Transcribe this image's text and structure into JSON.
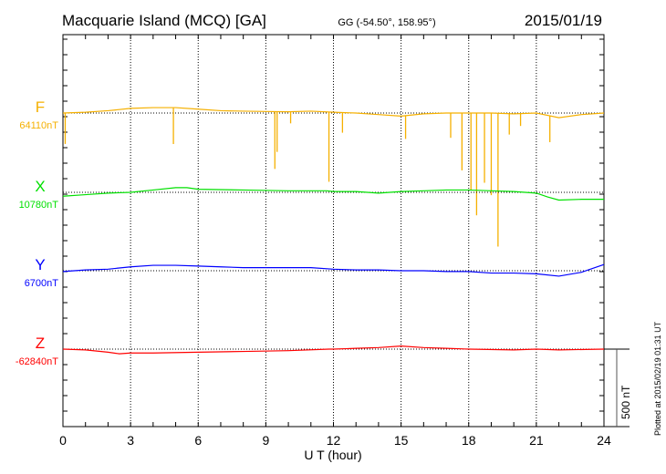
{
  "header": {
    "station": "Macquarie Island (MCQ)  [GA]",
    "coords": "GG (-54.50°, 158.95°)",
    "date": "2015/01/19"
  },
  "footer": {
    "plotted": "Plotted at 2015/02/19 01:31  UT",
    "scale_label": "500 nT"
  },
  "chart_data": {
    "type": "line",
    "xlabel": "U T (hour)",
    "xlim": [
      0,
      24
    ],
    "xticks": [
      "0",
      "3",
      "6",
      "9",
      "12",
      "15",
      "18",
      "21",
      "24"
    ],
    "units_per_minor_ytick_nT": 100,
    "series": [
      {
        "name": "F",
        "baseline": "64110nT",
        "color": "#f5b000",
        "points": [
          [
            0,
            0
          ],
          [
            1,
            5
          ],
          [
            2,
            15
          ],
          [
            3,
            30
          ],
          [
            4,
            35
          ],
          [
            5,
            35
          ],
          [
            6,
            25
          ],
          [
            7,
            15
          ],
          [
            8,
            12
          ],
          [
            9,
            10
          ],
          [
            10,
            8
          ],
          [
            11,
            12
          ],
          [
            12,
            5
          ],
          [
            13,
            0
          ],
          [
            14,
            -10
          ],
          [
            15,
            -20
          ],
          [
            16,
            -5
          ],
          [
            17,
            0
          ],
          [
            18,
            0
          ],
          [
            19,
            0
          ],
          [
            20,
            -5
          ],
          [
            21,
            0
          ],
          [
            22,
            -30
          ],
          [
            23,
            -10
          ],
          [
            24,
            0
          ]
        ],
        "spikes": [
          [
            0.1,
            -200
          ],
          [
            4.9,
            -235
          ],
          [
            9.4,
            -370
          ],
          [
            9.5,
            -260
          ],
          [
            10.1,
            -75
          ],
          [
            11.8,
            -450
          ],
          [
            12.4,
            -130
          ],
          [
            15.2,
            -150
          ],
          [
            17.2,
            -160
          ],
          [
            17.7,
            -370
          ],
          [
            18.1,
            -500
          ],
          [
            18.35,
            -660
          ],
          [
            18.7,
            -450
          ],
          [
            19.0,
            -530
          ],
          [
            19.3,
            -860
          ],
          [
            19.8,
            -135
          ],
          [
            20.3,
            -80
          ],
          [
            21.6,
            -170
          ]
        ]
      },
      {
        "name": "X",
        "baseline": "10780nT",
        "color": "#00e000",
        "points": [
          [
            0,
            -25
          ],
          [
            1,
            -15
          ],
          [
            2,
            -5
          ],
          [
            3,
            0
          ],
          [
            4,
            15
          ],
          [
            5,
            30
          ],
          [
            5.5,
            30
          ],
          [
            6,
            20
          ],
          [
            8,
            15
          ],
          [
            10,
            10
          ],
          [
            11.7,
            10
          ],
          [
            12,
            5
          ],
          [
            13,
            5
          ],
          [
            14,
            -5
          ],
          [
            15,
            5
          ],
          [
            16,
            10
          ],
          [
            17,
            15
          ],
          [
            18,
            15
          ],
          [
            19,
            10
          ],
          [
            20,
            5
          ],
          [
            21,
            -5
          ],
          [
            21.5,
            -30
          ],
          [
            22,
            -50
          ],
          [
            23,
            -45
          ],
          [
            24,
            -45
          ]
        ]
      },
      {
        "name": "Y",
        "baseline": "6700nT",
        "color": "#0000ff",
        "points": [
          [
            0,
            -5
          ],
          [
            1,
            5
          ],
          [
            2,
            10
          ],
          [
            3,
            25
          ],
          [
            4,
            35
          ],
          [
            5,
            35
          ],
          [
            6,
            30
          ],
          [
            7,
            25
          ],
          [
            8,
            20
          ],
          [
            9,
            20
          ],
          [
            10,
            20
          ],
          [
            11,
            20
          ],
          [
            12,
            10
          ],
          [
            13,
            5
          ],
          [
            14,
            5
          ],
          [
            15,
            0
          ],
          [
            16,
            0
          ],
          [
            17,
            -5
          ],
          [
            18,
            -5
          ],
          [
            19,
            -15
          ],
          [
            20,
            -15
          ],
          [
            21,
            -20
          ],
          [
            22,
            -35
          ],
          [
            23,
            -10
          ],
          [
            24,
            40
          ]
        ]
      },
      {
        "name": "Z",
        "baseline": "-62840nT",
        "color": "#ff0000",
        "points": [
          [
            0,
            0
          ],
          [
            1,
            -5
          ],
          [
            2,
            -20
          ],
          [
            2.5,
            -30
          ],
          [
            3,
            -25
          ],
          [
            4,
            -25
          ],
          [
            6,
            -20
          ],
          [
            8,
            -15
          ],
          [
            10,
            -10
          ],
          [
            11.8,
            0
          ],
          [
            12,
            0
          ],
          [
            13,
            5
          ],
          [
            14,
            10
          ],
          [
            15,
            20
          ],
          [
            16,
            10
          ],
          [
            17,
            5
          ],
          [
            18,
            0
          ],
          [
            20,
            -5
          ],
          [
            21,
            0
          ],
          [
            22,
            -5
          ],
          [
            24,
            0
          ]
        ]
      }
    ]
  }
}
